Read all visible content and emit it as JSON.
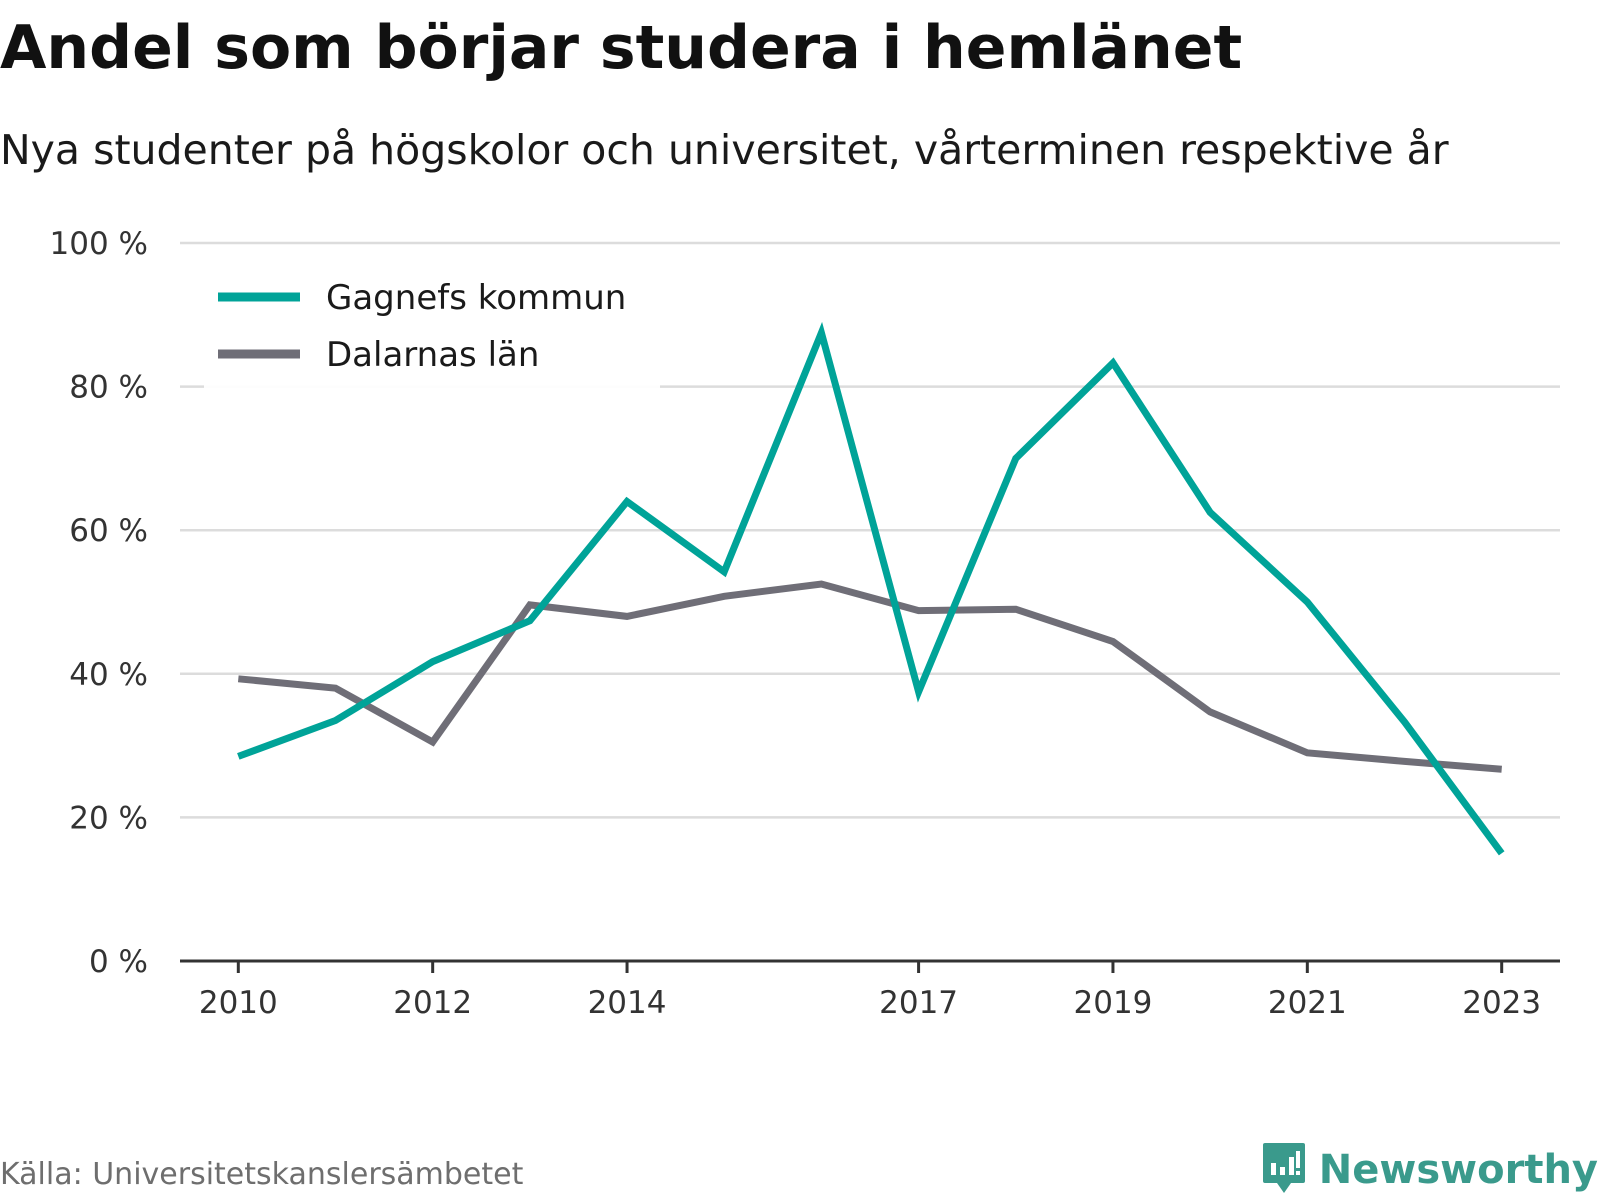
{
  "title": "Andel som börjar studera i hemlänet",
  "subtitle": "Nya studenter på högskolor och universitet, vårterminen respektive år",
  "source": "Källa: Universitetskanslersämbetet",
  "brand": "Newsworthy",
  "colors": {
    "series_1": "#00a398",
    "series_2": "#6f6e77",
    "grid": "#dcdcdc",
    "axis": "#333333",
    "brand": "#3a9a8c"
  },
  "chart_data": {
    "type": "line",
    "x": [
      2010,
      2011,
      2012,
      2013,
      2014,
      2015,
      2016,
      2017,
      2018,
      2019,
      2020,
      2021,
      2022,
      2023
    ],
    "x_tick_values": [
      2010,
      2012,
      2014,
      2017,
      2019,
      2021,
      2023
    ],
    "x_tick_labels": [
      "2010",
      "2012",
      "2014",
      "2017",
      "2019",
      "2021",
      "2023"
    ],
    "ylim": [
      0,
      100
    ],
    "y_ticks": [
      0,
      20,
      40,
      60,
      80,
      100
    ],
    "y_tick_labels": [
      "0 %",
      "20 %",
      "40 %",
      "60 %",
      "80 %",
      "100 %"
    ],
    "grid": true,
    "legend_position": "top-left",
    "series": [
      {
        "name": "Gagnefs kommun",
        "color": "#00a398",
        "values": [
          28.5,
          33.5,
          41.7,
          47.4,
          64.0,
          54.2,
          87.5,
          37.5,
          70.0,
          83.3,
          62.5,
          50.0,
          33.3,
          15.0
        ]
      },
      {
        "name": "Dalarnas län",
        "color": "#6f6e77",
        "values": [
          39.3,
          38.0,
          30.5,
          49.6,
          48.0,
          50.8,
          52.5,
          48.8,
          49.0,
          44.5,
          34.7,
          29.0,
          27.8,
          26.7
        ]
      }
    ]
  }
}
